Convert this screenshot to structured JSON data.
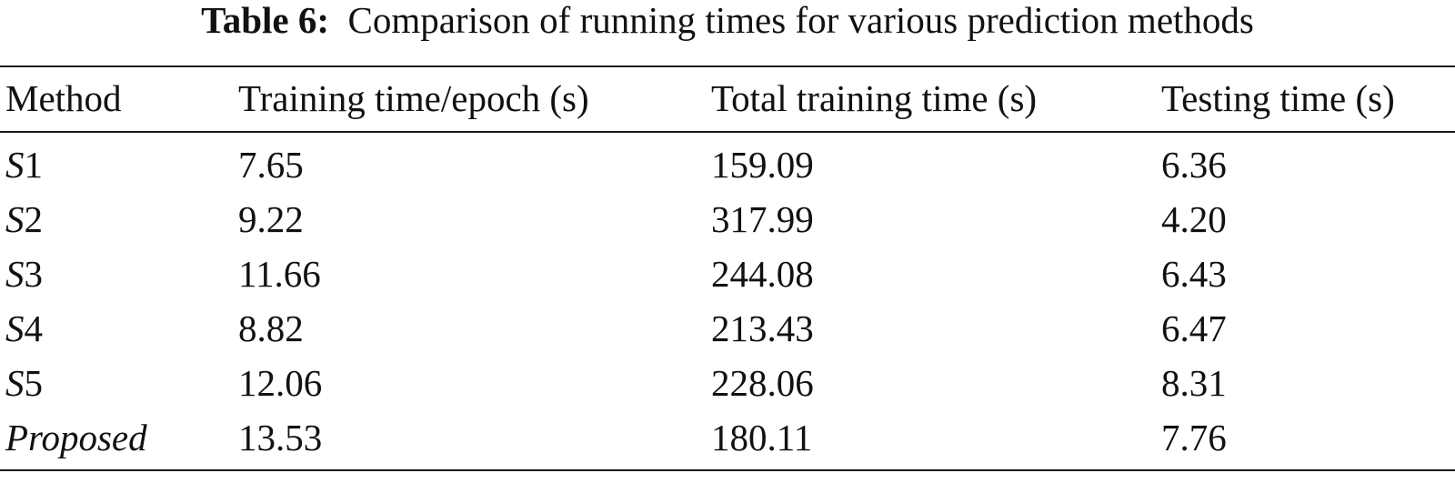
{
  "table": {
    "caption_label": "Table 6:",
    "caption_text": "Comparison of running times for various prediction methods",
    "columns": [
      "Method",
      "Training time/epoch (s)",
      "Total training time (s)",
      "Testing time (s)"
    ],
    "rows": [
      {
        "method_italic": "S",
        "method_suffix": "1",
        "train_epoch": "7.65",
        "total_train": "159.09",
        "test": "6.36"
      },
      {
        "method_italic": "S",
        "method_suffix": "2",
        "train_epoch": "9.22",
        "total_train": "317.99",
        "test": "4.20"
      },
      {
        "method_italic": "S",
        "method_suffix": "3",
        "train_epoch": "11.66",
        "total_train": "244.08",
        "test": "6.43"
      },
      {
        "method_italic": "S",
        "method_suffix": "4",
        "train_epoch": "8.82",
        "total_train": "213.43",
        "test": "6.47"
      },
      {
        "method_italic": "S",
        "method_suffix": "5",
        "train_epoch": "12.06",
        "total_train": "228.06",
        "test": "8.31"
      },
      {
        "method_italic": "Proposed",
        "method_suffix": "",
        "train_epoch": "13.53",
        "total_train": "180.11",
        "test": "7.76"
      }
    ]
  }
}
